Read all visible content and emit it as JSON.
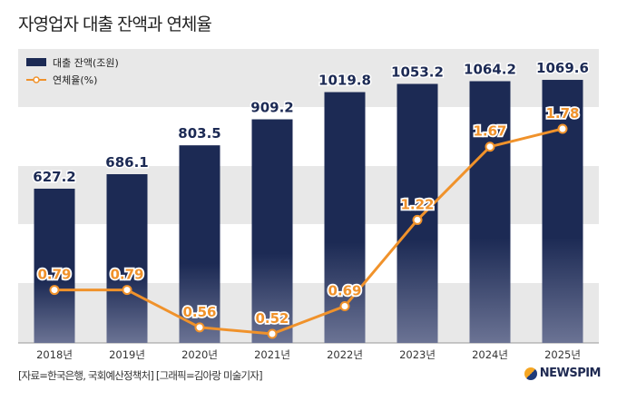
{
  "title": "자영업자 대출 잔액과 연체율",
  "source": "[자료=한국은행, 국회예산정책처] [그래픽=김아랑 미술기자]",
  "logo": "NEWSPIM",
  "colors": {
    "bar": "#1c2a54",
    "line": "#f0922b",
    "band": "#e8e8e8"
  },
  "chart_data": {
    "type": "bar+line",
    "title": "자영업자 대출 잔액과 연체율",
    "categories": [
      "2018년",
      "2019년",
      "2020년",
      "2021년",
      "2022년",
      "2023년",
      "2024년",
      "2025년"
    ],
    "series": [
      {
        "name": "대출 잔액(조원)",
        "type": "bar",
        "values": [
          627.2,
          686.1,
          803.5,
          909.2,
          1019.8,
          1053.2,
          1064.2,
          1069.6
        ],
        "labels": [
          "627.2",
          "686.1",
          "803.5",
          "909.2",
          "1019.8",
          "1053.2",
          "1064.2",
          "1069.6"
        ]
      },
      {
        "name": "연체율(%)",
        "type": "line",
        "values": [
          0.79,
          0.79,
          0.56,
          0.52,
          0.69,
          1.22,
          1.67,
          1.78
        ],
        "labels": [
          "0.79",
          "0.79",
          "0.56",
          "0.52",
          "0.69",
          "1.22",
          "1.67",
          "1.78"
        ]
      }
    ],
    "legend": "top-left",
    "grid": "alternating bands"
  }
}
